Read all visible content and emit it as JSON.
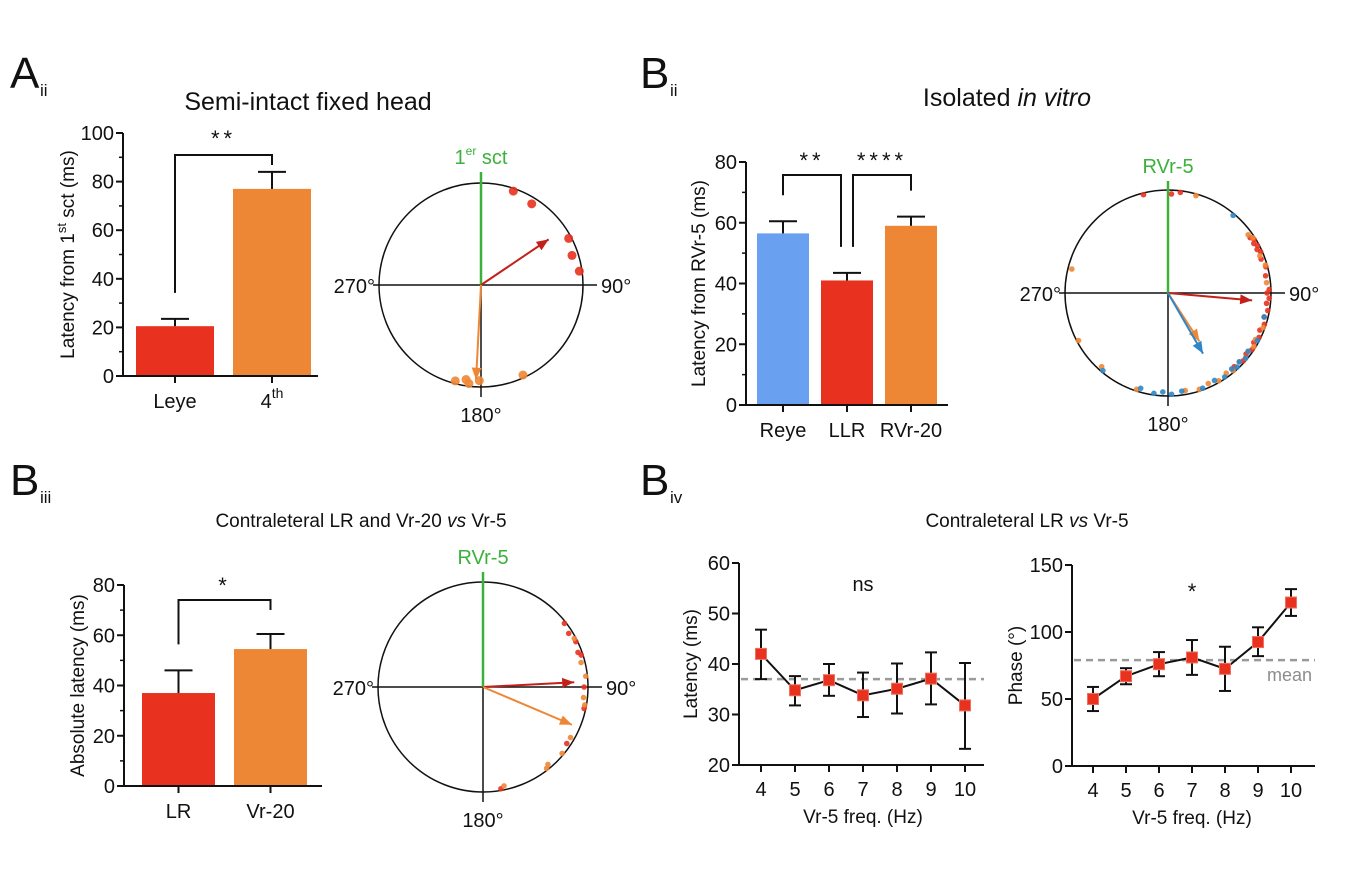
{
  "panels": {
    "aii": {
      "letter": "A",
      "sub": "ii",
      "title": "Semi-intact fixed head"
    },
    "bii": {
      "letter": "B",
      "sub": "ii",
      "title_plain": "Isolated ",
      "title_italic": "in vitro"
    },
    "biii": {
      "letter": "B",
      "sub": "iii",
      "title_a": "Contraleteral LR and Vr-20 ",
      "title_vs": "vs",
      "title_b": " Vr-5"
    },
    "biv": {
      "letter": "B",
      "sub": "iv",
      "title_a": "Contraleteral LR ",
      "title_vs": "vs",
      "title_b": " Vr-5"
    }
  },
  "colors": {
    "red": "#e8321f",
    "orange": "#ee8735",
    "blue": "#6aa0f0",
    "green": "#3bb13b",
    "dark_red": "#c4201a",
    "polar_blue": "#2f86c8",
    "mean_gray": "#9a9a9a"
  },
  "chart_data": [
    {
      "id": "aii-bar",
      "type": "bar",
      "title": "Semi-intact fixed head",
      "ylabel": "Latency from 1st sct (ms)",
      "ylabel_parts": [
        "Latency from 1",
        "st",
        " sct (ms)"
      ],
      "xlabel": "",
      "ylim": [
        0,
        100
      ],
      "yticks": [
        0,
        20,
        40,
        60,
        80,
        100
      ],
      "categories": [
        "Leye",
        "4th"
      ],
      "category_parts": [
        [
          "Leye",
          ""
        ],
        [
          "4",
          "th"
        ]
      ],
      "values": [
        20.5,
        77
      ],
      "errors": [
        3,
        7
      ],
      "bar_colors": [
        "red",
        "orange"
      ],
      "significance": [
        {
          "from": 0,
          "to": 1,
          "label": "**"
        }
      ]
    },
    {
      "id": "aii-polar",
      "type": "scatter",
      "subtype": "polar",
      "reference_label_parts": [
        "1",
        "er",
        " sct"
      ],
      "angle_labels": {
        "right": "90°",
        "left": "270°",
        "bottom": "180°"
      },
      "series": [
        {
          "name": "Leye",
          "color": "red",
          "points_deg": [
            19,
            32,
            62,
            72,
            82
          ],
          "mean_angle_deg": 56,
          "mean_length": 0.8
        },
        {
          "name": "4th",
          "color": "orange",
          "points_deg": [
            155,
            181,
            187,
            189,
            195
          ],
          "mean_angle_deg": 183,
          "mean_length": 0.93
        }
      ]
    },
    {
      "id": "bii-bar",
      "type": "bar",
      "title": "Isolated in vitro",
      "ylabel": "Latency from RVr-5 (ms)",
      "xlabel": "",
      "ylim": [
        0,
        80
      ],
      "yticks": [
        0,
        20,
        40,
        60,
        80
      ],
      "categories": [
        "Reye",
        "LLR",
        "RVr-20"
      ],
      "values": [
        56.5,
        41,
        59
      ],
      "errors": [
        4,
        2.5,
        3
      ],
      "bar_colors": [
        "blue",
        "red",
        "orange"
      ],
      "significance": [
        {
          "from": 0,
          "to": 1,
          "label": "**"
        },
        {
          "from": 1,
          "to": 2,
          "label": "****"
        }
      ]
    },
    {
      "id": "bii-polar",
      "type": "scatter",
      "subtype": "polar",
      "reference_label": "RVr-5",
      "angle_labels": {
        "right": "90°",
        "left": "270°",
        "bottom": "180°"
      },
      "series": [
        {
          "name": "LLR",
          "color": "red",
          "points_deg": [
            346,
            2,
            7,
            56,
            58,
            60,
            62,
            64,
            66,
            70,
            75,
            80,
            88,
            90,
            93,
            96,
            100,
            104,
            108,
            112,
            116,
            120,
            124,
            128,
            132,
            138
          ],
          "mean_angle_deg": 95,
          "mean_length": 0.82
        },
        {
          "name": "RVr-20",
          "color": "orange",
          "points_deg": [
            16,
            54,
            57,
            68,
            74,
            84,
            110,
            118,
            122,
            126,
            130,
            134,
            140,
            144,
            150,
            156,
            162,
            170,
            198,
            222,
            242,
            284
          ],
          "mean_angle_deg": 147,
          "mean_length": 0.56
        },
        {
          "name": "Reye",
          "color": "polar_blue",
          "points_deg": [
            40,
            104,
            118,
            126,
            130,
            134,
            137,
            140,
            146,
            152,
            160,
            172,
            178,
            183,
            188,
            196,
            220
          ],
          "mean_angle_deg": 150,
          "mean_length": 0.68
        }
      ]
    },
    {
      "id": "biii-bar",
      "type": "bar",
      "title": "Contraleteral LR and Vr-20 vs Vr-5",
      "ylabel": "Absolute latency (ms)",
      "xlabel": "",
      "ylim": [
        0,
        80
      ],
      "yticks": [
        0,
        20,
        40,
        60,
        80
      ],
      "categories": [
        "LR",
        "Vr-20"
      ],
      "values": [
        37,
        54.5
      ],
      "errors": [
        9,
        6
      ],
      "bar_colors": [
        "red",
        "orange"
      ],
      "significance": [
        {
          "from": 0,
          "to": 1,
          "label": "*"
        }
      ]
    },
    {
      "id": "biii-polar",
      "type": "scatter",
      "subtype": "polar",
      "reference_label": "RVr-5",
      "angle_labels": {
        "right": "90°",
        "left": "270°",
        "bottom": "180°"
      },
      "series": [
        {
          "name": "LR",
          "color": "red",
          "points_deg": [
            52,
            58,
            64,
            70,
            72,
            90,
            102,
            124,
            170
          ],
          "mean_angle_deg": 87,
          "mean_length": 0.87
        },
        {
          "name": "Vr-20",
          "color": "orange",
          "points_deg": [
            62,
            76,
            84,
            96,
            100,
            120,
            130,
            140,
            142,
            168
          ],
          "mean_angle_deg": 113,
          "mean_length": 0.92
        }
      ]
    },
    {
      "id": "biv-latency",
      "type": "line",
      "title": "Contraleteral LR vs Vr-5",
      "xlabel": "Vr-5 freq. (Hz)",
      "ylabel": "Latency (ms)",
      "ylim": [
        20,
        60
      ],
      "yticks": [
        20,
        30,
        40,
        50,
        60
      ],
      "x": [
        4,
        5,
        6,
        7,
        8,
        9,
        10
      ],
      "series": [
        {
          "name": "Latency",
          "values": [
            42,
            34.8,
            36.8,
            33.8,
            35.1,
            37.1,
            31.8
          ],
          "err_low": [
            37,
            31.8,
            33.7,
            29.5,
            30.2,
            32,
            23.2
          ],
          "err_high": [
            46.8,
            37.6,
            40,
            38.3,
            40.1,
            42.3,
            40.2
          ]
        }
      ],
      "mean_line": 37,
      "annotation": "ns"
    },
    {
      "id": "biv-phase",
      "type": "line",
      "xlabel": "Vr-5 freq. (Hz)",
      "ylabel": "Phase (°)",
      "ylim": [
        0,
        150
      ],
      "yticks": [
        0,
        50,
        100,
        150
      ],
      "x": [
        4,
        5,
        6,
        7,
        8,
        9,
        10
      ],
      "series": [
        {
          "name": "Phase",
          "values": [
            50,
            67,
            76,
            81,
            72.5,
            92.5,
            122
          ],
          "err_low": [
            41,
            61,
            67,
            68,
            56,
            82,
            112
          ],
          "err_high": [
            59,
            73,
            85,
            94,
            89,
            103.5,
            132
          ]
        }
      ],
      "mean_line": 79,
      "mean_label": "mean",
      "annotation": "*"
    }
  ]
}
